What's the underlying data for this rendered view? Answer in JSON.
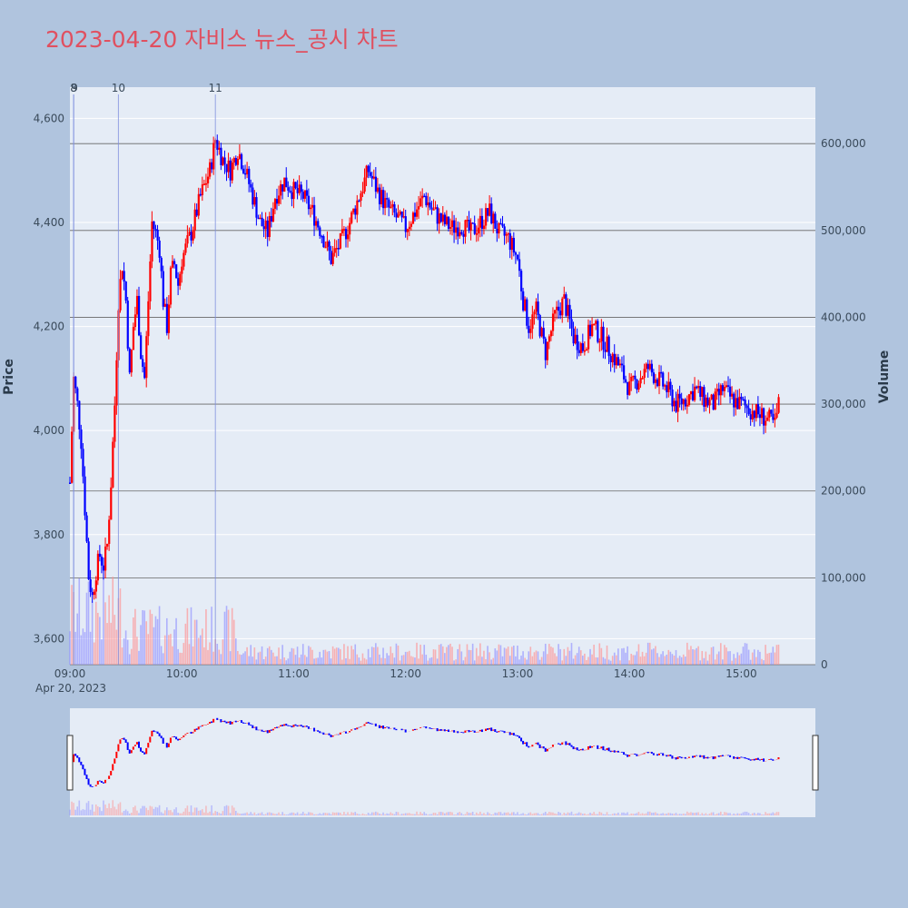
{
  "title": "2023-04-20 자비스 뉴스_공시 차트",
  "chart_data": {
    "type": "candlestick",
    "title": "2023-04-20 자비스 뉴스_공시 차트",
    "ylabel": "Price",
    "y2label": "Volume",
    "date_label": "Apr 20, 2023",
    "price_range": [
      3550,
      4660
    ],
    "volume_range": [
      0,
      665000
    ],
    "price_ticks": [
      3600,
      3800,
      4000,
      4200,
      4400,
      4600
    ],
    "price_tick_labels": [
      "3,600",
      "3,800",
      "4,000",
      "4,200",
      "4,400",
      "4,600"
    ],
    "volume_ticks": [
      0,
      100000,
      200000,
      300000,
      400000,
      500000,
      600000
    ],
    "volume_tick_labels": [
      "0",
      "100,000",
      "200,000",
      "300,000",
      "400,000",
      "500,000",
      "600,000"
    ],
    "x_ticks": [
      "09:00",
      "10:00",
      "11:00",
      "12:00",
      "13:00",
      "14:00",
      "15:00"
    ],
    "news_markers": [
      {
        "label": "8",
        "time": "09:02"
      },
      {
        "label": "9",
        "time": "09:02"
      },
      {
        "label": "10",
        "time": "09:26"
      },
      {
        "label": "11",
        "time": "10:18"
      }
    ],
    "up_color": "#ff0000",
    "down_color": "#0000ff",
    "price_path": [
      [
        "09:00",
        3900
      ],
      [
        "09:02",
        4100
      ],
      [
        "09:04",
        4050
      ],
      [
        "09:06",
        3980
      ],
      [
        "09:08",
        3850
      ],
      [
        "09:10",
        3720
      ],
      [
        "09:12",
        3680
      ],
      [
        "09:14",
        3730
      ],
      [
        "09:16",
        3760
      ],
      [
        "09:18",
        3740
      ],
      [
        "09:20",
        3780
      ],
      [
        "09:22",
        3900
      ],
      [
        "09:24",
        4050
      ],
      [
        "09:26",
        4250
      ],
      [
        "09:28",
        4320
      ],
      [
        "09:30",
        4250
      ],
      [
        "09:32",
        4100
      ],
      [
        "09:34",
        4200
      ],
      [
        "09:36",
        4250
      ],
      [
        "09:38",
        4150
      ],
      [
        "09:40",
        4100
      ],
      [
        "09:42",
        4250
      ],
      [
        "09:44",
        4400
      ],
      [
        "09:46",
        4380
      ],
      [
        "09:48",
        4350
      ],
      [
        "09:50",
        4250
      ],
      [
        "09:52",
        4200
      ],
      [
        "09:54",
        4300
      ],
      [
        "09:56",
        4320
      ],
      [
        "09:58",
        4280
      ],
      [
        "10:00",
        4330
      ],
      [
        "10:05",
        4380
      ],
      [
        "10:10",
        4450
      ],
      [
        "10:15",
        4500
      ],
      [
        "10:18",
        4560
      ],
      [
        "10:22",
        4520
      ],
      [
        "10:26",
        4500
      ],
      [
        "10:30",
        4540
      ],
      [
        "10:34",
        4500
      ],
      [
        "10:38",
        4450
      ],
      [
        "10:42",
        4400
      ],
      [
        "10:46",
        4380
      ],
      [
        "10:50",
        4450
      ],
      [
        "10:55",
        4480
      ],
      [
        "11:00",
        4460
      ],
      [
        "11:05",
        4450
      ],
      [
        "11:10",
        4420
      ],
      [
        "11:15",
        4380
      ],
      [
        "11:20",
        4330
      ],
      [
        "11:25",
        4360
      ],
      [
        "11:30",
        4400
      ],
      [
        "11:35",
        4450
      ],
      [
        "11:40",
        4500
      ],
      [
        "11:45",
        4460
      ],
      [
        "11:50",
        4430
      ],
      [
        "11:55",
        4410
      ],
      [
        "12:00",
        4390
      ],
      [
        "12:05",
        4420
      ],
      [
        "12:10",
        4450
      ],
      [
        "12:15",
        4420
      ],
      [
        "12:20",
        4400
      ],
      [
        "12:25",
        4390
      ],
      [
        "12:30",
        4395
      ],
      [
        "12:35",
        4380
      ],
      [
        "12:40",
        4400
      ],
      [
        "12:45",
        4420
      ],
      [
        "12:50",
        4380
      ],
      [
        "12:55",
        4370
      ],
      [
        "13:00",
        4330
      ],
      [
        "13:03",
        4250
      ],
      [
        "13:06",
        4200
      ],
      [
        "13:10",
        4230
      ],
      [
        "13:15",
        4150
      ],
      [
        "13:20",
        4220
      ],
      [
        "13:25",
        4250
      ],
      [
        "13:30",
        4180
      ],
      [
        "13:35",
        4160
      ],
      [
        "13:40",
        4200
      ],
      [
        "13:45",
        4180
      ],
      [
        "13:50",
        4150
      ],
      [
        "13:55",
        4120
      ],
      [
        "14:00",
        4080
      ],
      [
        "14:05",
        4100
      ],
      [
        "14:10",
        4120
      ],
      [
        "14:15",
        4100
      ],
      [
        "14:20",
        4080
      ],
      [
        "14:25",
        4050
      ],
      [
        "14:30",
        4060
      ],
      [
        "14:35",
        4080
      ],
      [
        "14:40",
        4060
      ],
      [
        "14:45",
        4050
      ],
      [
        "14:50",
        4080
      ],
      [
        "14:55",
        4060
      ],
      [
        "15:00",
        4050
      ],
      [
        "15:05",
        4040
      ],
      [
        "15:10",
        4030
      ],
      [
        "15:15",
        4020
      ],
      [
        "15:18",
        4010
      ],
      [
        "15:20",
        4050
      ]
    ]
  }
}
